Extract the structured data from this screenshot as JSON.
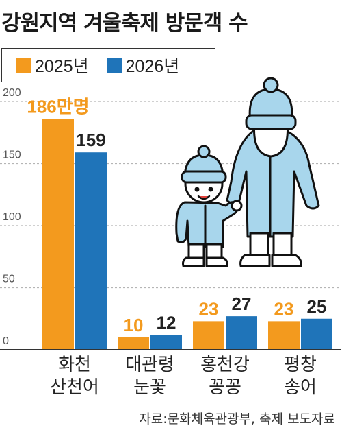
{
  "chart_data": {
    "type": "bar",
    "title": "강원지역 겨울축제 방문객 수",
    "categories": [
      "화천\n산천어",
      "대관령\n눈꽃",
      "홍천강\n꽁꽁",
      "평창\n송어"
    ],
    "series": [
      {
        "name": "2025년",
        "color": "#f39a1e",
        "label_color": "#f39a1e",
        "values": [
          186,
          10,
          23,
          23
        ],
        "labels": [
          "186만명",
          "10",
          "23",
          "23"
        ]
      },
      {
        "name": "2026년",
        "color": "#1f74b9",
        "label_color": "#222222",
        "values": [
          159,
          12,
          27,
          25
        ],
        "labels": [
          "159",
          "12",
          "27",
          "25"
        ]
      }
    ],
    "y_ticks": [
      0,
      50,
      100,
      150,
      200
    ],
    "ylim": [
      0,
      200
    ],
    "grid": true,
    "legend": "top-left",
    "source": "자료:문화체육관광부, 축제 보도자료"
  },
  "illustration": {
    "icon": "parent-and-child-in-winter-clothes-icon"
  }
}
